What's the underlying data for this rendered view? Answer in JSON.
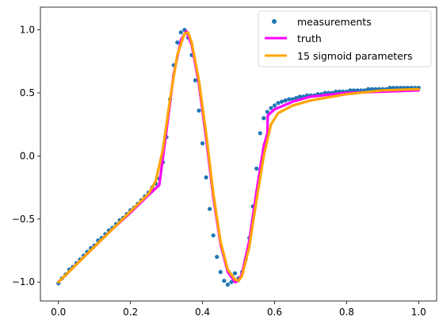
{
  "chart_data": {
    "type": "line",
    "title": "",
    "xlabel": "",
    "ylabel": "",
    "xlim": [
      -0.05,
      1.05
    ],
    "ylim": [
      -1.15,
      1.18
    ],
    "grid": false,
    "legend_position": "top-right",
    "x_ticks": [
      0.0,
      0.2,
      0.4,
      0.6,
      0.8,
      1.0
    ],
    "x_tick_labels": [
      "0.0",
      "0.2",
      "0.4",
      "0.6",
      "0.8",
      "1.0"
    ],
    "y_ticks": [
      -1.0,
      -0.5,
      0.0,
      0.5,
      1.0
    ],
    "y_tick_labels": [
      "−1.0",
      "−0.5",
      "0.0",
      "0.5",
      "1.0"
    ],
    "series": [
      {
        "name": "measurements",
        "kind": "scatter",
        "color": "#1f77b4",
        "x": [
          0.0,
          0.01,
          0.02,
          0.03,
          0.04,
          0.05,
          0.06,
          0.07,
          0.08,
          0.09,
          0.1,
          0.11,
          0.12,
          0.13,
          0.14,
          0.15,
          0.16,
          0.17,
          0.18,
          0.19,
          0.2,
          0.21,
          0.22,
          0.23,
          0.24,
          0.25,
          0.26,
          0.27,
          0.28,
          0.29,
          0.3,
          0.31,
          0.32,
          0.33,
          0.34,
          0.35,
          0.36,
          0.37,
          0.38,
          0.39,
          0.4,
          0.41,
          0.42,
          0.43,
          0.44,
          0.45,
          0.46,
          0.47,
          0.48,
          0.49,
          0.5,
          0.51,
          0.52,
          0.53,
          0.54,
          0.55,
          0.56,
          0.57,
          0.58,
          0.59,
          0.6,
          0.61,
          0.62,
          0.63,
          0.64,
          0.65,
          0.66,
          0.67,
          0.68,
          0.69,
          0.7,
          0.71,
          0.72,
          0.73,
          0.74,
          0.75,
          0.76,
          0.77,
          0.78,
          0.79,
          0.8,
          0.81,
          0.82,
          0.83,
          0.84,
          0.85,
          0.86,
          0.87,
          0.88,
          0.89,
          0.9,
          0.91,
          0.92,
          0.93,
          0.94,
          0.95,
          0.96,
          0.97,
          0.98,
          0.99,
          1.0
        ],
        "y": [
          -1.01,
          -0.97,
          -0.94,
          -0.9,
          -0.88,
          -0.85,
          -0.82,
          -0.79,
          -0.76,
          -0.73,
          -0.71,
          -0.67,
          -0.65,
          -0.62,
          -0.59,
          -0.57,
          -0.54,
          -0.51,
          -0.49,
          -0.46,
          -0.43,
          -0.41,
          -0.38,
          -0.35,
          -0.32,
          -0.29,
          -0.25,
          -0.22,
          -0.18,
          -0.05,
          0.15,
          0.45,
          0.72,
          0.9,
          0.98,
          1.0,
          0.94,
          0.8,
          0.6,
          0.36,
          0.1,
          -0.17,
          -0.42,
          -0.63,
          -0.8,
          -0.92,
          -0.99,
          -1.02,
          -1.0,
          -0.93,
          -0.97,
          -0.92,
          -0.82,
          -0.65,
          -0.4,
          -0.1,
          0.18,
          0.3,
          0.35,
          0.38,
          0.4,
          0.42,
          0.43,
          0.44,
          0.45,
          0.45,
          0.46,
          0.47,
          0.47,
          0.48,
          0.48,
          0.48,
          0.49,
          0.49,
          0.5,
          0.5,
          0.5,
          0.51,
          0.51,
          0.51,
          0.51,
          0.52,
          0.52,
          0.52,
          0.52,
          0.52,
          0.53,
          0.53,
          0.53,
          0.53,
          0.53,
          0.53,
          0.54,
          0.54,
          0.54,
          0.54,
          0.54,
          0.54,
          0.54,
          0.54,
          0.54
        ]
      },
      {
        "name": "truth",
        "kind": "line",
        "color": "#ff00ff",
        "x": [
          0.0,
          0.05,
          0.1,
          0.15,
          0.2,
          0.25,
          0.28,
          0.3,
          0.32,
          0.34,
          0.355,
          0.37,
          0.39,
          0.41,
          0.43,
          0.45,
          0.47,
          0.49,
          0.5,
          0.51,
          0.53,
          0.55,
          0.57,
          0.58,
          0.581,
          0.6,
          0.65,
          0.7,
          0.8,
          0.9,
          1.0
        ],
        "y": [
          -1.0,
          -0.86,
          -0.72,
          -0.58,
          -0.45,
          -0.31,
          -0.23,
          0.2,
          0.65,
          0.92,
          0.99,
          0.88,
          0.57,
          0.14,
          -0.33,
          -0.7,
          -0.92,
          -1.0,
          -0.99,
          -0.93,
          -0.67,
          -0.28,
          0.08,
          0.18,
          0.32,
          0.37,
          0.43,
          0.47,
          0.5,
          0.51,
          0.52
        ]
      },
      {
        "name": "15 sigmoid parameters",
        "kind": "line",
        "color": "#ffa500",
        "x": [
          0.0,
          0.05,
          0.1,
          0.15,
          0.2,
          0.25,
          0.27,
          0.29,
          0.31,
          0.33,
          0.35,
          0.36,
          0.37,
          0.39,
          0.41,
          0.43,
          0.45,
          0.47,
          0.49,
          0.5,
          0.51,
          0.53,
          0.55,
          0.57,
          0.59,
          0.61,
          0.65,
          0.7,
          0.8,
          0.9,
          1.0
        ],
        "y": [
          -1.0,
          -0.86,
          -0.72,
          -0.58,
          -0.44,
          -0.3,
          -0.2,
          0.05,
          0.45,
          0.8,
          0.97,
          0.98,
          0.9,
          0.6,
          0.18,
          -0.3,
          -0.68,
          -0.9,
          -0.98,
          -0.99,
          -0.95,
          -0.72,
          -0.35,
          0.0,
          0.25,
          0.34,
          0.4,
          0.44,
          0.49,
          0.52,
          0.53
        ]
      }
    ]
  }
}
